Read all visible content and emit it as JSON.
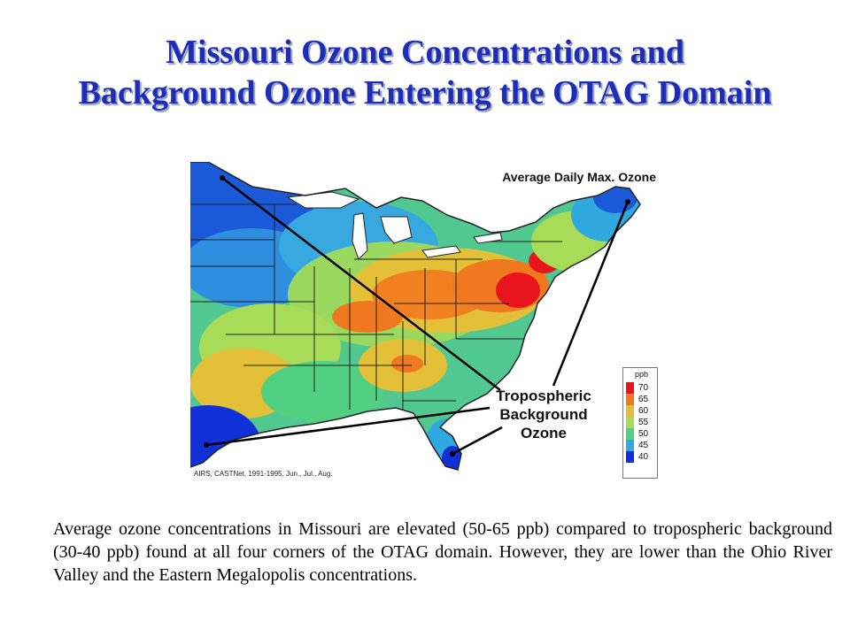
{
  "slide": {
    "title_line1": "Missouri Ozone Concentrations and",
    "title_line2": "Background Ozone Entering the OTAG Domain",
    "caption": "Average ozone concentrations in Missouri are elevated (50-65 ppb) compared to tropospheric background (30-40 ppb) found at all four corners of the OTAG domain. However, they are lower than the Ohio River Valley and the Eastern Megalopolis concentrations."
  },
  "map": {
    "title": "Average Daily Max. Ozone",
    "callout": [
      "Tropospheric",
      "Background",
      "Ozone"
    ],
    "source": "AIRS, CASTNet, 1991-1995, Jun., Jul., Aug.",
    "legend": {
      "unit": "ppb",
      "items": [
        {
          "label": "70",
          "color": "#e8141c"
        },
        {
          "label": "65",
          "color": "#f07820"
        },
        {
          "label": "60",
          "color": "#e4c038"
        },
        {
          "label": "55",
          "color": "#a8dc58"
        },
        {
          "label": "50",
          "color": "#50d080"
        },
        {
          "label": "45",
          "color": "#30a8e0"
        },
        {
          "label": "40",
          "color": "#1030d8"
        }
      ]
    }
  }
}
